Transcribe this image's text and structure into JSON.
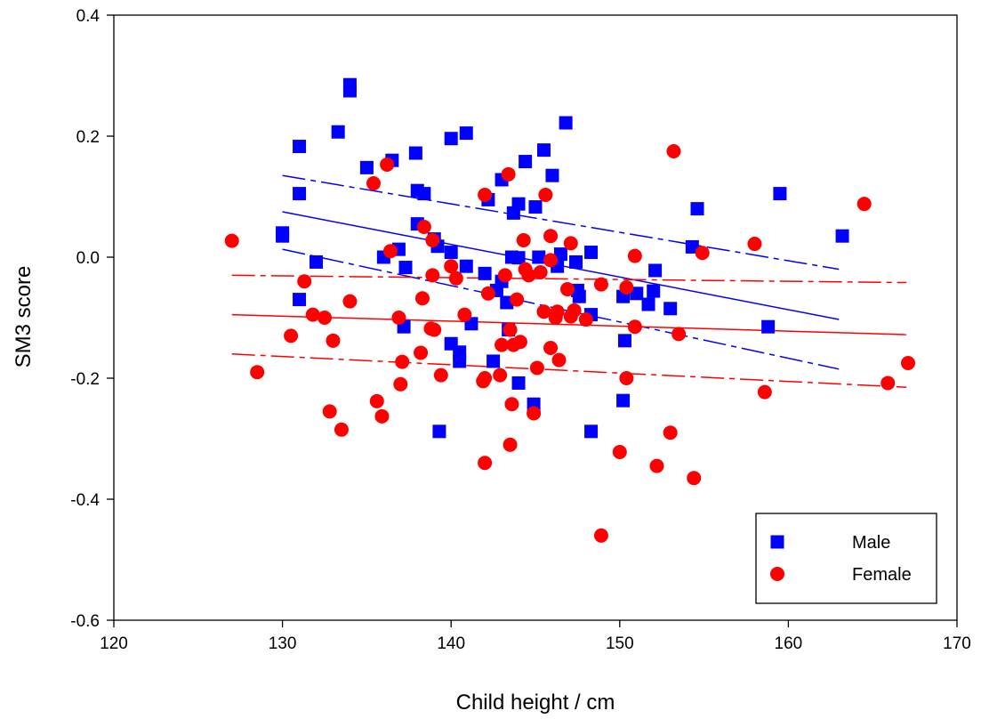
{
  "chart_data": {
    "type": "scatter",
    "xlabel": "Child height / cm",
    "ylabel": "SM3 score",
    "xlim": [
      120,
      170
    ],
    "ylim": [
      -0.6,
      0.4
    ],
    "xticks": [
      120,
      130,
      140,
      150,
      160,
      170
    ],
    "yticks": [
      -0.6,
      -0.4,
      -0.2,
      0.0,
      0.2,
      0.4
    ],
    "xtick_labels": [
      "120",
      "130",
      "140",
      "150",
      "160",
      "170"
    ],
    "ytick_labels": [
      "-0.6",
      "-0.4",
      "-0.2",
      "0.0",
      "0.2",
      "0.4"
    ],
    "grid": false,
    "legend_position": "bottom-right",
    "series": [
      {
        "name": "Male",
        "marker": "square",
        "color": "#0000ff",
        "points": [
          [
            130,
            0.035
          ],
          [
            130,
            0.04
          ],
          [
            131,
            0.183
          ],
          [
            131,
            0.105
          ],
          [
            131,
            -0.07
          ],
          [
            132,
            -0.008
          ],
          [
            133.3,
            0.207
          ],
          [
            134,
            0.285
          ],
          [
            134,
            0.275
          ],
          [
            135,
            0.148
          ],
          [
            136,
            0.0
          ],
          [
            136.5,
            0.16
          ],
          [
            136.9,
            0.013
          ],
          [
            137.3,
            -0.017
          ],
          [
            137.2,
            -0.115
          ],
          [
            137.9,
            0.172
          ],
          [
            138,
            0.11
          ],
          [
            138,
            0.055
          ],
          [
            138.4,
            0.105
          ],
          [
            139,
            0.03
          ],
          [
            139.2,
            0.018
          ],
          [
            139.3,
            -0.288
          ],
          [
            140,
            0.196
          ],
          [
            140,
            0.008
          ],
          [
            140,
            -0.143
          ],
          [
            140.5,
            -0.157
          ],
          [
            140.5,
            -0.172
          ],
          [
            140.9,
            0.205
          ],
          [
            140.9,
            -0.015
          ],
          [
            141.2,
            -0.11
          ],
          [
            142,
            -0.027
          ],
          [
            142.2,
            0.095
          ],
          [
            142.5,
            -0.172
          ],
          [
            142.7,
            -0.055
          ],
          [
            143,
            0.128
          ],
          [
            143,
            -0.04
          ],
          [
            143.3,
            -0.075
          ],
          [
            143.4,
            -0.12
          ],
          [
            143.6,
            0.0
          ],
          [
            143.7,
            0.073
          ],
          [
            144,
            0.088
          ],
          [
            144,
            -0.001
          ],
          [
            144,
            -0.208
          ],
          [
            144.4,
            0.158
          ],
          [
            144.9,
            -0.243
          ],
          [
            145,
            0.083
          ],
          [
            145.2,
            0.0
          ],
          [
            145.5,
            0.177
          ],
          [
            146,
            0.135
          ],
          [
            146.3,
            -0.015
          ],
          [
            146.5,
            0.005
          ],
          [
            146.8,
            0.222
          ],
          [
            147.4,
            -0.008
          ],
          [
            147.6,
            -0.065
          ],
          [
            147.5,
            -0.055
          ],
          [
            148.3,
            0.008
          ],
          [
            148.3,
            -0.288
          ],
          [
            148.3,
            -0.095
          ],
          [
            150.2,
            -0.065
          ],
          [
            150.2,
            -0.237
          ],
          [
            150.3,
            -0.138
          ],
          [
            151,
            -0.06
          ],
          [
            151.7,
            -0.078
          ],
          [
            152,
            -0.056
          ],
          [
            152.1,
            -0.022
          ],
          [
            153,
            -0.085
          ],
          [
            154.3,
            0.017
          ],
          [
            154.6,
            0.08
          ],
          [
            158.8,
            -0.115
          ],
          [
            159.5,
            0.105
          ],
          [
            163.2,
            0.035
          ]
        ],
        "fit": {
          "x": [
            130,
            163
          ],
          "y": [
            0.075,
            -0.103
          ]
        },
        "ci_upper": {
          "x": [
            130,
            163
          ],
          "y": [
            0.135,
            -0.02
          ]
        },
        "ci_lower": {
          "x": [
            130,
            163
          ],
          "y": [
            0.013,
            -0.185
          ]
        }
      },
      {
        "name": "Female",
        "marker": "circle",
        "color": "#ff0000",
        "points": [
          [
            127,
            0.027
          ],
          [
            128.5,
            -0.19
          ],
          [
            130.5,
            -0.13
          ],
          [
            131.3,
            -0.04
          ],
          [
            131.8,
            -0.095
          ],
          [
            132.5,
            -0.1
          ],
          [
            132.8,
            -0.255
          ],
          [
            133,
            -0.138
          ],
          [
            133.5,
            -0.285
          ],
          [
            134,
            -0.073
          ],
          [
            135.4,
            0.122
          ],
          [
            135.6,
            -0.238
          ],
          [
            135.9,
            -0.263
          ],
          [
            136.2,
            0.153
          ],
          [
            136.4,
            0.01
          ],
          [
            136.9,
            -0.1
          ],
          [
            137,
            -0.21
          ],
          [
            137.1,
            -0.173
          ],
          [
            138.2,
            -0.158
          ],
          [
            138.3,
            -0.068
          ],
          [
            138.4,
            0.05
          ],
          [
            138.8,
            -0.118
          ],
          [
            138.9,
            0.028
          ],
          [
            138.9,
            -0.03
          ],
          [
            139,
            -0.12
          ],
          [
            139.4,
            -0.195
          ],
          [
            140,
            -0.015
          ],
          [
            140.3,
            -0.035
          ],
          [
            140.8,
            -0.095
          ],
          [
            142,
            -0.2
          ],
          [
            142,
            0.103
          ],
          [
            141.9,
            -0.205
          ],
          [
            142,
            -0.34
          ],
          [
            142.2,
            -0.06
          ],
          [
            142.9,
            -0.195
          ],
          [
            143,
            -0.145
          ],
          [
            143.2,
            -0.03
          ],
          [
            143.4,
            0.137
          ],
          [
            143.5,
            -0.31
          ],
          [
            143.5,
            -0.12
          ],
          [
            143.6,
            -0.243
          ],
          [
            143.7,
            -0.145
          ],
          [
            143.9,
            -0.07
          ],
          [
            144.1,
            -0.14
          ],
          [
            144.3,
            0.028
          ],
          [
            144.4,
            -0.02
          ],
          [
            144.6,
            -0.03
          ],
          [
            144.9,
            -0.258
          ],
          [
            145.1,
            -0.183
          ],
          [
            145.3,
            -0.025
          ],
          [
            145.5,
            -0.09
          ],
          [
            145.6,
            0.103
          ],
          [
            145.9,
            0.035
          ],
          [
            145.9,
            -0.15
          ],
          [
            145.9,
            -0.005
          ],
          [
            146.2,
            -0.1
          ],
          [
            146.3,
            -0.09
          ],
          [
            146.4,
            -0.17
          ],
          [
            146.9,
            -0.053
          ],
          [
            147.1,
            0.023
          ],
          [
            147.1,
            -0.098
          ],
          [
            147.3,
            -0.088
          ],
          [
            148,
            -0.103
          ],
          [
            148.9,
            -0.46
          ],
          [
            148.9,
            -0.045
          ],
          [
            150,
            -0.322
          ],
          [
            150.4,
            -0.2
          ],
          [
            150.4,
            -0.05
          ],
          [
            150.9,
            -0.115
          ],
          [
            150.9,
            0.002
          ],
          [
            152.2,
            -0.345
          ],
          [
            153,
            -0.29
          ],
          [
            153.2,
            0.175
          ],
          [
            153.5,
            -0.127
          ],
          [
            154.4,
            -0.365
          ],
          [
            154.9,
            0.007
          ],
          [
            158,
            0.022
          ],
          [
            158.6,
            -0.223
          ],
          [
            164.5,
            0.088
          ],
          [
            165.9,
            -0.208
          ],
          [
            167.1,
            -0.175
          ]
        ],
        "fit": {
          "x": [
            127,
            167
          ],
          "y": [
            -0.095,
            -0.128
          ]
        },
        "ci_upper": {
          "x": [
            127,
            167
          ],
          "y": [
            -0.03,
            -0.042
          ]
        },
        "ci_lower": {
          "x": [
            127,
            167
          ],
          "y": [
            -0.16,
            -0.215
          ]
        }
      }
    ]
  }
}
